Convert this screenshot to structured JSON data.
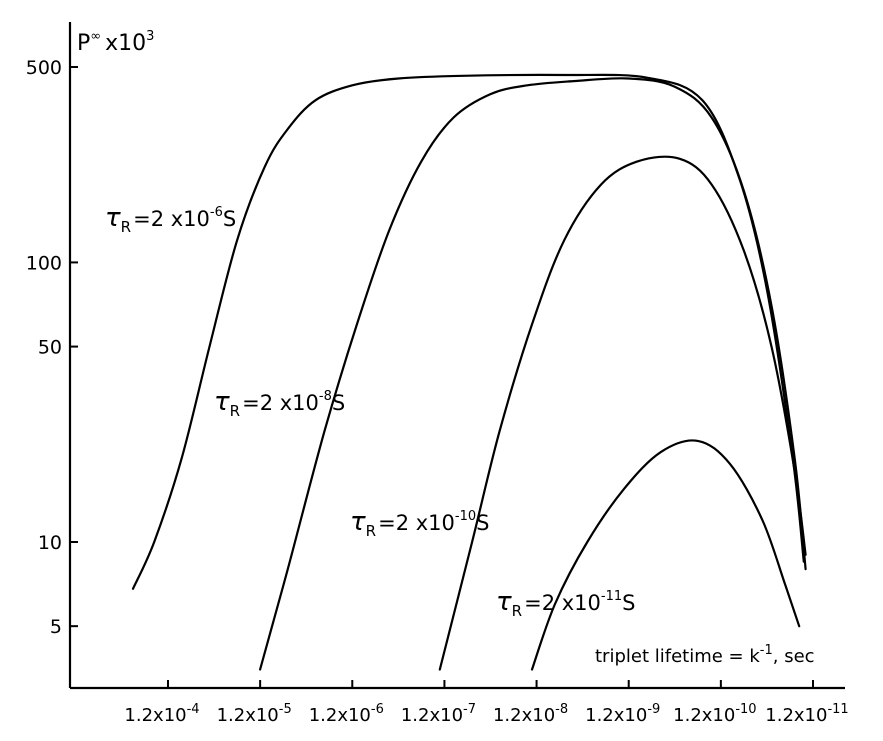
{
  "chart_data": {
    "type": "line",
    "ylabel": "P",
    "ylabel_superscript": "∞",
    "ylabel_factor": "x10",
    "ylabel_factor_exponent": "3",
    "xlabel": "triplet lifetime = k",
    "xlabel_exponent": "-1",
    "xlabel_unit": ", sec",
    "y_scale": "log",
    "ylim": [
      3,
      500
    ],
    "y_ticks": [
      {
        "value": 500,
        "label": "500"
      },
      {
        "value": 100,
        "label": "100"
      },
      {
        "value": 50,
        "label": "50"
      },
      {
        "value": 10,
        "label": "10"
      },
      {
        "value": 5,
        "label": "5"
      }
    ],
    "x_scale": "log (lifetime decreasing to the right)",
    "x_ticks": [
      {
        "exp": -4,
        "label": "1.2x10",
        "exponent": "-4"
      },
      {
        "exp": -5,
        "label": "1.2x10",
        "exponent": "-5"
      },
      {
        "exp": -6,
        "label": "1.2x10",
        "exponent": "-6"
      },
      {
        "exp": -7,
        "label": "1.2x10",
        "exponent": "-7"
      },
      {
        "exp": -8,
        "label": "1.2x10",
        "exponent": "-8"
      },
      {
        "exp": -9,
        "label": "1.2x10",
        "exponent": "-9"
      },
      {
        "exp": -10,
        "label": "1.2x10",
        "exponent": "-10"
      },
      {
        "exp": -11,
        "label": "1.2x10",
        "exponent": "-11"
      }
    ],
    "x_unit_note": "x values are log10(lifetime / 1.2 s)",
    "grid": false,
    "series": [
      {
        "name": "τR = 2 x10-6S",
        "label_prefix": "τ",
        "label_sub": "R",
        "label_mid": "=2 x10",
        "label_exp": "-6",
        "label_suffix": "S",
        "points": [
          [
            -3.62,
            6.8
          ],
          [
            -3.85,
            10
          ],
          [
            -4.15,
            20
          ],
          [
            -4.45,
            50
          ],
          [
            -4.75,
            120
          ],
          [
            -5.05,
            220
          ],
          [
            -5.3,
            300
          ],
          [
            -5.6,
            380
          ],
          [
            -6.0,
            430
          ],
          [
            -6.5,
            455
          ],
          [
            -7.2,
            465
          ],
          [
            -8.3,
            468
          ],
          [
            -9.2,
            458
          ],
          [
            -9.8,
            380
          ],
          [
            -10.2,
            200
          ],
          [
            -10.5,
            80
          ],
          [
            -10.78,
            20
          ],
          [
            -10.9,
            8.5
          ]
        ]
      },
      {
        "name": "τR = 2 x10-8S",
        "label_prefix": "τ",
        "label_sub": "R",
        "label_mid": "=2 x10",
        "label_exp": "-8",
        "label_suffix": "S",
        "points": [
          [
            -5.0,
            3.5
          ],
          [
            -5.3,
            8
          ],
          [
            -5.7,
            25
          ],
          [
            -6.05,
            60
          ],
          [
            -6.4,
            130
          ],
          [
            -6.75,
            230
          ],
          [
            -7.1,
            330
          ],
          [
            -7.5,
            400
          ],
          [
            -7.9,
            430
          ],
          [
            -8.4,
            445
          ],
          [
            -9.0,
            455
          ],
          [
            -9.5,
            425
          ],
          [
            -9.9,
            330
          ],
          [
            -10.25,
            180
          ],
          [
            -10.55,
            70
          ],
          [
            -10.8,
            20
          ],
          [
            -10.92,
            8
          ]
        ]
      },
      {
        "name": "τR = 2 x10-10S",
        "label_prefix": "τ",
        "label_sub": "R",
        "label_mid": "=2 x10",
        "label_exp": "-10",
        "label_suffix": "S",
        "points": [
          [
            -6.95,
            3.5
          ],
          [
            -7.3,
            10
          ],
          [
            -7.6,
            25
          ],
          [
            -7.95,
            60
          ],
          [
            -8.3,
            120
          ],
          [
            -8.7,
            190
          ],
          [
            -9.1,
            230
          ],
          [
            -9.55,
            235
          ],
          [
            -9.9,
            190
          ],
          [
            -10.25,
            110
          ],
          [
            -10.55,
            50
          ],
          [
            -10.8,
            18
          ],
          [
            -10.92,
            9
          ]
        ]
      },
      {
        "name": "τR = 2 x10-11S",
        "label_prefix": "τ",
        "label_sub": "R",
        "label_mid": "=2 x10",
        "label_exp": "-11",
        "label_suffix": "S",
        "points": [
          [
            -7.95,
            3.5
          ],
          [
            -8.2,
            6
          ],
          [
            -8.55,
            10
          ],
          [
            -8.95,
            15.5
          ],
          [
            -9.35,
            21
          ],
          [
            -9.75,
            23
          ],
          [
            -10.1,
            19
          ],
          [
            -10.45,
            12
          ],
          [
            -10.7,
            7
          ],
          [
            -10.85,
            5
          ]
        ]
      }
    ]
  }
}
